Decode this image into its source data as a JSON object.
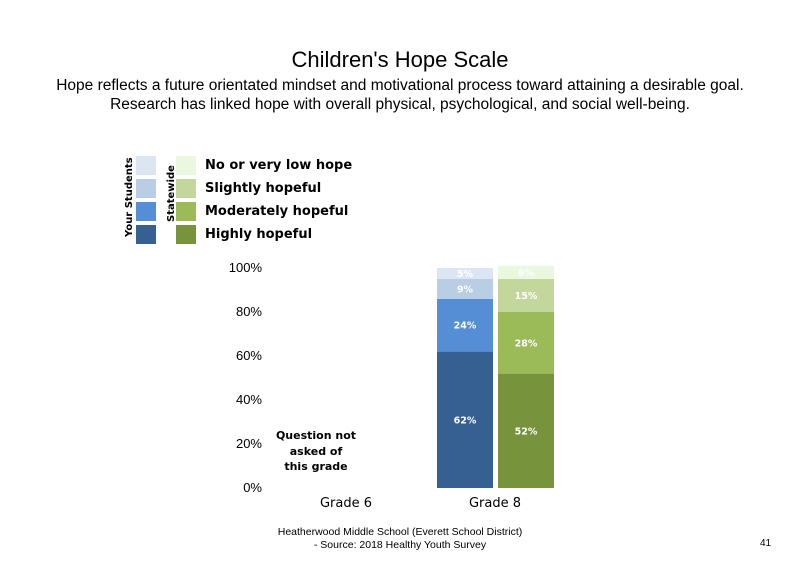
{
  "title": "Children's Hope Scale",
  "subtitle": [
    "Hope reflects a future orientated mindset and motivational process toward attaining a desirable goal.",
    "Research has linked hope with overall physical, psychological, and social well-being."
  ],
  "legend": {
    "group_labels": {
      "yours": "Your Students",
      "statewide": "Statewide"
    },
    "items": [
      {
        "label": "No or very low hope",
        "your_color": "#dce6f2",
        "state_color": "#ebf7df"
      },
      {
        "label": "Slightly hopeful",
        "your_color": "#b9cde5",
        "state_color": "#c3d69b"
      },
      {
        "label": "Moderately hopeful",
        "your_color": "#558ed5",
        "state_color": "#9bbb59"
      },
      {
        "label": "Highly hopeful",
        "your_color": "#376092",
        "state_color": "#77933c"
      }
    ]
  },
  "chart_data": {
    "type": "bar",
    "stacked": true,
    "categories": [
      "Grade 6",
      "Grade 8"
    ],
    "ylim": [
      0,
      100
    ],
    "yticks": [
      "0%",
      "20%",
      "40%",
      "60%",
      "80%",
      "100%"
    ],
    "series": [
      {
        "name": "Your Students",
        "category": "Grade 8",
        "segments": [
          {
            "label": "Highly hopeful",
            "value": 62,
            "text": "62%",
            "color": "#376092"
          },
          {
            "label": "Moderately hopeful",
            "value": 24,
            "text": "24%",
            "color": "#558ed5"
          },
          {
            "label": "Slightly hopeful",
            "value": 9,
            "text": "9%",
            "color": "#b9cde5"
          },
          {
            "label": "No or very low hope",
            "value": 5,
            "text": "5%",
            "color": "#dce6f2"
          }
        ]
      },
      {
        "name": "Statewide",
        "category": "Grade 8",
        "segments": [
          {
            "label": "Highly hopeful",
            "value": 52,
            "text": "52%",
            "color": "#77933c"
          },
          {
            "label": "Moderately hopeful",
            "value": 28,
            "text": "28%",
            "color": "#9bbb59"
          },
          {
            "label": "Slightly hopeful",
            "value": 15,
            "text": "15%",
            "color": "#c3d69b"
          },
          {
            "label": "No or very low hope",
            "value": 6,
            "text": "6%",
            "color": "#ebf7df"
          }
        ]
      }
    ],
    "annotation": [
      "Question not",
      "asked of",
      "this grade"
    ]
  },
  "footer": [
    "Heatherwood Middle School (Everett School District)",
    "- Source: 2018 Healthy Youth Survey"
  ],
  "page_number": "41"
}
